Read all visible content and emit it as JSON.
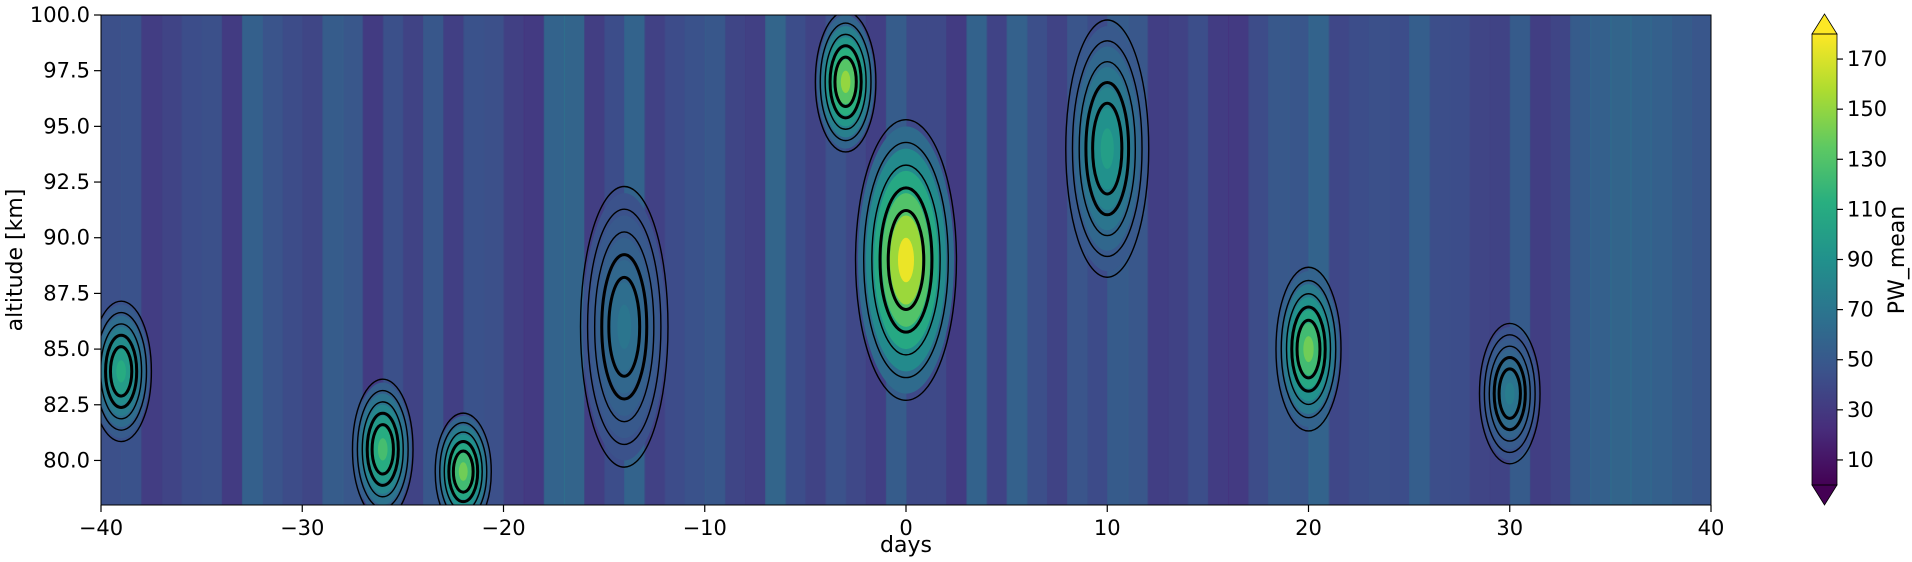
{
  "chart_data": {
    "type": "heatmap",
    "title": "",
    "xlabel": "days",
    "ylabel": "altitude [km]",
    "xlim": [
      -40,
      40
    ],
    "ylim": [
      78,
      100
    ],
    "x_ticks": [
      -40,
      -30,
      -20,
      -10,
      0,
      10,
      20,
      30,
      40
    ],
    "y_ticks": [
      80.0,
      82.5,
      85.0,
      87.5,
      90.0,
      92.5,
      95.0,
      97.5,
      100.0
    ],
    "x_tick_labels": [
      "−40",
      "−30",
      "−20",
      "−10",
      "0",
      "10",
      "20",
      "30",
      "40"
    ],
    "y_tick_labels": [
      "80.0",
      "82.5",
      "85.0",
      "87.5",
      "90.0",
      "92.5",
      "95.0",
      "97.5",
      "100.0"
    ],
    "colormap": "viridis",
    "colorbar": {
      "label": "PW_mean",
      "range": [
        0,
        180
      ],
      "extend": "both",
      "ticks": [
        10,
        30,
        50,
        70,
        90,
        110,
        130,
        150,
        170
      ],
      "tick_labels": [
        "10",
        "30",
        "50",
        "70",
        "90",
        "110",
        "130",
        "150",
        "170"
      ]
    },
    "overlay": "black line contours of the same field",
    "features": [
      {
        "day": 0,
        "altitude_center": 89,
        "altitude_span": [
          84,
          96
        ],
        "value": 175
      },
      {
        "day": -3,
        "altitude_center": 97,
        "altitude_span": [
          94,
          100
        ],
        "value": 150
      },
      {
        "day": -22,
        "altitude_center": 79.5,
        "altitude_span": [
          78,
          83
        ],
        "value": 140
      },
      {
        "day": -26,
        "altitude_center": 80.5,
        "altitude_span": [
          78,
          84
        ],
        "value": 125
      },
      {
        "day": -39,
        "altitude_center": 84,
        "altitude_span": [
          81,
          87
        ],
        "value": 110
      },
      {
        "day": 20,
        "altitude_center": 85,
        "altitude_span": [
          82,
          89
        ],
        "value": 140
      },
      {
        "day": 10,
        "altitude_center": 94,
        "altitude_span": [
          89,
          100
        ],
        "value": 100
      },
      {
        "day": 30,
        "altitude_center": 83,
        "altitude_span": [
          80,
          86
        ],
        "value": 75
      },
      {
        "day": -14,
        "altitude_center": 86,
        "altitude_span": [
          80,
          92
        ],
        "value": 70
      }
    ]
  }
}
